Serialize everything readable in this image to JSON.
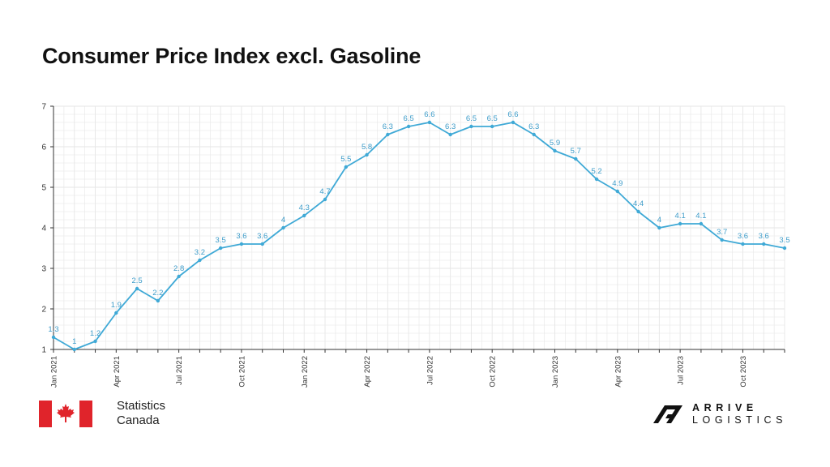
{
  "title": "Consumer Price Index excl. Gasoline",
  "chart_data": {
    "type": "line",
    "title": "Consumer Price Index excl. Gasoline",
    "xlabel": "",
    "ylabel": "",
    "ylim": [
      1,
      7
    ],
    "yticks": [
      1,
      2,
      3,
      4,
      5,
      6,
      7
    ],
    "grid": true,
    "x": [
      "Jan 2021",
      "Feb 2021",
      "Mar 2021",
      "Apr 2021",
      "May 2021",
      "Jun 2021",
      "Jul 2021",
      "Aug 2021",
      "Sep 2021",
      "Oct 2021",
      "Nov 2021",
      "Dec 2021",
      "Jan 2022",
      "Feb 2022",
      "Mar 2022",
      "Apr 2022",
      "May 2022",
      "Jun 2022",
      "Jul 2022",
      "Aug 2022",
      "Sep 2022",
      "Oct 2022",
      "Nov 2022",
      "Dec 2022",
      "Jan 2023",
      "Feb 2023",
      "Mar 2023",
      "Apr 2023",
      "May 2023",
      "Jun 2023",
      "Jul 2023",
      "Aug 2023",
      "Sep 2023",
      "Oct 2023",
      "Nov 2023",
      "Dec 2023"
    ],
    "xtick_labels": [
      "Jan 2021",
      "Apr 2021",
      "Jul 2021",
      "Oct 2021",
      "Jan 2022",
      "Apr 2022",
      "Jul 2022",
      "Oct 2022",
      "Jan 2023",
      "Apr 2023",
      "Jul 2023",
      "Oct 2023"
    ],
    "series": [
      {
        "values": [
          1.3,
          1,
          1.2,
          1.9,
          2.5,
          2.2,
          2.8,
          3.2,
          3.5,
          3.6,
          3.6,
          4,
          4.3,
          4.7,
          5.5,
          5.8,
          6.3,
          6.5,
          6.6,
          6.3,
          6.5,
          6.5,
          6.6,
          6.3,
          5.9,
          5.7,
          5.2,
          4.9,
          4.4,
          4,
          4.1,
          4.1,
          3.7,
          3.6,
          3.6,
          3.5
        ],
        "labels": [
          "1.3",
          "1",
          "1.2",
          "1.9",
          "2.5",
          "2.2",
          "2.8",
          "3.2",
          "3.5",
          "3.6",
          "3.6",
          "4",
          "4.3",
          "4.7",
          "5.5",
          "5.8",
          "6.3",
          "6.5",
          "6.6",
          "6.3",
          "6.5",
          "6.5",
          "6.6",
          "6.3",
          "5.9",
          "5.7",
          "5.2",
          "4.9",
          "4.4",
          "4",
          "4.1",
          "4.1",
          "3.7",
          "3.6",
          "3.6",
          "3.5"
        ]
      }
    ],
    "colors": {
      "line": "#3fa9d6",
      "label": "#3e9cc9",
      "grid": "#e6e6e6",
      "axis": "#333333"
    }
  },
  "footer": {
    "source_line1": "Statistics",
    "source_line2": "Canada",
    "brand_line1": "ARRIVE",
    "brand_line2": "LOGISTICS",
    "flag_color": "#e0242b"
  }
}
